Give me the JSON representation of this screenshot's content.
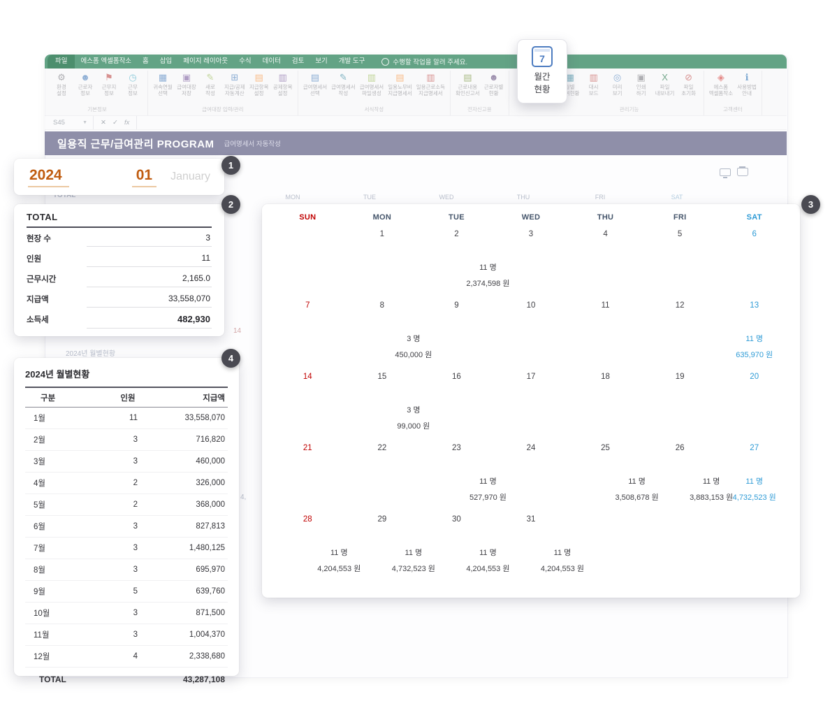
{
  "ribbon": {
    "tabs": [
      "파일",
      "에스폼 엑셀폼작소",
      "홈",
      "삽입",
      "페이지 레이아웃",
      "수식",
      "데이터",
      "검토",
      "보기",
      "개발 도구"
    ],
    "tell_me": "수행할 작업을 알려 주세요.",
    "name_box": "S45",
    "formula": {
      "cancel": "✕",
      "enter": "✓",
      "fx": "fx"
    },
    "groups": [
      {
        "label": "기본정보",
        "buttons": [
          {
            "name": "settings",
            "label": "환경\n설정",
            "glyph": "⚙",
            "color": "#7f7f85"
          },
          {
            "name": "worker-info",
            "label": "근로자\n정보",
            "glyph": "☻",
            "color": "#4a7ebb"
          },
          {
            "name": "workplace-info",
            "label": "근무지\n정보",
            "glyph": "⚑",
            "color": "#c0504d"
          },
          {
            "name": "work-info",
            "label": "근무\n정보",
            "glyph": "◷",
            "color": "#4aacc5"
          }
        ]
      },
      {
        "label": "급여대장 입력/관리",
        "buttons": [
          {
            "name": "period-select",
            "label": "귀속연월\n선택",
            "glyph": "▦",
            "color": "#4a7ebb"
          },
          {
            "name": "ledger-save",
            "label": "급여대장\n저장",
            "glyph": "▣",
            "color": "#8064a2"
          },
          {
            "name": "new-sheet",
            "label": "새로\n작성",
            "glyph": "✎",
            "color": "#9bbb59"
          },
          {
            "name": "auto-calc",
            "label": "지급/공제\n자동계산",
            "glyph": "⊞",
            "color": "#4a7ebb"
          },
          {
            "name": "payment-items",
            "label": "지급항목\n설정",
            "glyph": "▤",
            "color": "#f79646"
          },
          {
            "name": "deduction-items",
            "label": "공제항목\n설정",
            "glyph": "▥",
            "color": "#8064a2"
          }
        ]
      },
      {
        "label": "서식작성",
        "buttons": [
          {
            "name": "payslip-select",
            "label": "급여명세서\n선택",
            "glyph": "▤",
            "color": "#4a7ebb"
          },
          {
            "name": "payslip-write",
            "label": "급여명세서\n작성",
            "glyph": "✎",
            "color": "#31859c"
          },
          {
            "name": "payslip-file",
            "label": "급여명세서\n파일생성",
            "glyph": "▥",
            "color": "#9bbb59"
          },
          {
            "name": "daily-labor-statement",
            "label": "일용노무비\n지급명세서",
            "glyph": "▤",
            "color": "#f79646"
          },
          {
            "name": "daily-income-statement",
            "label": "일용근로소득\n지급명세서",
            "glyph": "▥",
            "color": "#c0504d"
          }
        ]
      },
      {
        "label": "전자신고용",
        "buttons": [
          {
            "name": "work-report",
            "label": "근로내용\n확인신고서",
            "glyph": "▤",
            "color": "#77933c"
          },
          {
            "name": "worker-status",
            "label": "근로자별\n현황",
            "glyph": "☻",
            "color": "#604a7b"
          }
        ]
      },
      {
        "label": "관리기능",
        "buttons": [
          {
            "name": "monthly-pay-status",
            "label": "월별\n급여현황",
            "glyph": "▦",
            "color": "#31859c"
          },
          {
            "name": "dashboard",
            "label": "대시\n보드",
            "glyph": "▥",
            "color": "#c0504d"
          },
          {
            "name": "preview",
            "label": "미리\n보기",
            "glyph": "◎",
            "color": "#4a7ebb"
          },
          {
            "name": "print",
            "label": "인쇄\n하기",
            "glyph": "▣",
            "color": "#7f7f85"
          },
          {
            "name": "export-file",
            "label": "파일\n내보내기",
            "glyph": "X",
            "color": "#217346"
          },
          {
            "name": "reset-file",
            "label": "파일\n초기화",
            "glyph": "⊘",
            "color": "#c0504d"
          }
        ]
      },
      {
        "label": "고객센터",
        "buttons": [
          {
            "name": "esform-home",
            "label": "에스폼\n엑셀폼작소",
            "glyph": "◈",
            "color": "#d64541"
          },
          {
            "name": "help-guide",
            "label": "사용방법\n안내",
            "glyph": "ℹ",
            "color": "#2e75b6"
          }
        ]
      }
    ]
  },
  "title_bar": {
    "title": "일용직 근무/급여관리 PROGRAM",
    "subtitle": "급여명세서 자동작성"
  },
  "callout": {
    "number": "7",
    "line1": "월간",
    "line2": "현황"
  },
  "badges": {
    "b1": "1",
    "b2": "2",
    "b3": "3",
    "b4": "4"
  },
  "period": {
    "year": "2024",
    "month": "01",
    "month_name": "January"
  },
  "total_panel": {
    "title": "TOTAL",
    "rows": [
      {
        "label": "현장 수",
        "value": "3"
      },
      {
        "label": "인원",
        "value": "11"
      },
      {
        "label": "근무시간",
        "value": "2,165.0"
      },
      {
        "label": "지급액",
        "value": "33,558,070"
      },
      {
        "label": "소득세",
        "value": "482,930"
      }
    ]
  },
  "calendar": {
    "weekday_headers": [
      "SUN",
      "MON",
      "TUE",
      "WED",
      "THU",
      "FRI",
      "SAT"
    ],
    "weeks": [
      [
        {},
        {
          "day": "1"
        },
        {
          "day": "2",
          "people": "11 명",
          "amount": "2,374,598 원"
        },
        {
          "day": "3"
        },
        {
          "day": "4"
        },
        {
          "day": "5"
        },
        {
          "day": "6"
        }
      ],
      [
        {
          "day": "7"
        },
        {
          "day": "8",
          "people": "3 명",
          "amount": "450,000 원"
        },
        {
          "day": "9"
        },
        {
          "day": "10"
        },
        {
          "day": "11"
        },
        {
          "day": "12"
        },
        {
          "day": "13",
          "people": "11 명",
          "amount": "635,970 원"
        }
      ],
      [
        {
          "day": "14"
        },
        {
          "day": "15",
          "people": "3 명",
          "amount": "99,000 원"
        },
        {
          "day": "16"
        },
        {
          "day": "17"
        },
        {
          "day": "18"
        },
        {
          "day": "19"
        },
        {
          "day": "20"
        }
      ],
      [
        {
          "day": "21"
        },
        {
          "day": "22"
        },
        {
          "day": "23",
          "people": "11 명",
          "amount": "527,970 원"
        },
        {
          "day": "24"
        },
        {
          "day": "25",
          "people": "11 명",
          "amount": "3,508,678 원"
        },
        {
          "day": "26",
          "people": "11 명",
          "amount": "3,883,153 원"
        },
        {
          "day": "27",
          "people": "11 명",
          "amount": "4,732,523 원"
        }
      ],
      [
        {
          "day": "28",
          "people": "11 명",
          "amount": "4,204,553 원"
        },
        {
          "day": "29",
          "people": "11 명",
          "amount": "4,732,523 원"
        },
        {
          "day": "30",
          "people": "11 명",
          "amount": "4,204,553 원"
        },
        {
          "day": "31",
          "people": "11 명",
          "amount": "4,204,553 원"
        },
        {},
        {},
        {}
      ]
    ]
  },
  "monthly_panel": {
    "title": "2024년 월별현황",
    "headers": [
      "구분",
      "인원",
      "지급액"
    ],
    "rows": [
      [
        "1월",
        "11",
        "33,558,070"
      ],
      [
        "2월",
        "3",
        "716,820"
      ],
      [
        "3월",
        "3",
        "460,000"
      ],
      [
        "4월",
        "2",
        "326,000"
      ],
      [
        "5월",
        "2",
        "368,000"
      ],
      [
        "6월",
        "3",
        "827,813"
      ],
      [
        "7월",
        "3",
        "1,480,125"
      ],
      [
        "8월",
        "3",
        "695,970"
      ],
      [
        "9월",
        "5",
        "639,760"
      ],
      [
        "10월",
        "3",
        "871,500"
      ],
      [
        "11월",
        "3",
        "1,004,370"
      ],
      [
        "12월",
        "4",
        "2,338,680"
      ]
    ],
    "total_label": "TOTAL",
    "total_value": "43,287,108"
  },
  "background_hints": {
    "total_label": "TOTAL",
    "weekdays": [
      "MON",
      "TUE",
      "WED",
      "THU",
      "FRI",
      "SAT"
    ],
    "monthly_title": "2024년 월별현황",
    "red_day": "14",
    "fragment": "4,"
  }
}
